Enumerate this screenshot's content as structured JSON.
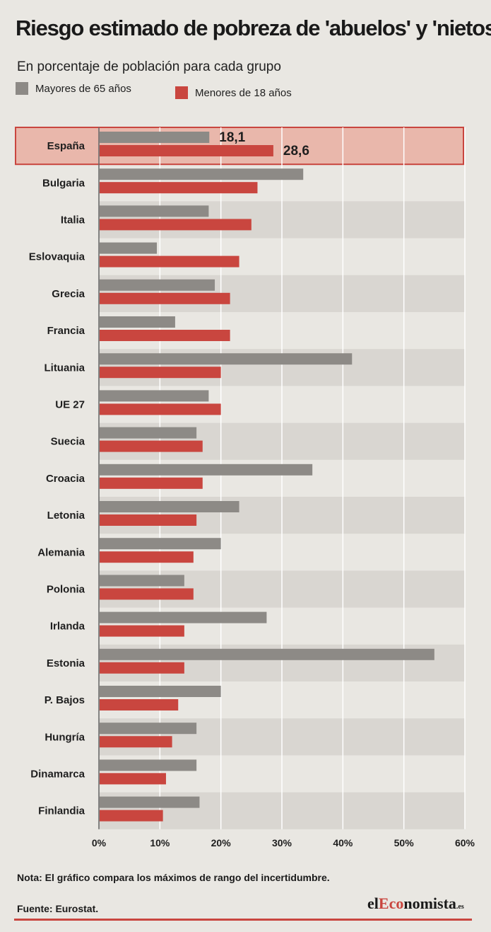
{
  "title": "Riesgo estimado de pobreza de 'abuelos' y 'nietos'",
  "subtitle": "En porcentaje de población para cada grupo",
  "legend": [
    {
      "label": "Mayores de 65 años",
      "color": "#8d8a86"
    },
    {
      "label": "Menores de 18 años",
      "color": "#c9463f"
    }
  ],
  "note": "Nota: El gráfico compara los máximos de rango del incertidumbre.",
  "source": "Fuente: Eurostat.",
  "brand": {
    "pre": "el",
    "highlight": "Eco",
    "post": "nomista",
    "suffix": ".es"
  },
  "chart_data": {
    "type": "bar",
    "orientation": "horizontal",
    "categories": [
      "España",
      "Bulgaria",
      "Italia",
      "Eslovaquia",
      "Grecia",
      "Francia",
      "Lituania",
      "UE 27",
      "Suecia",
      "Croacia",
      "Letonia",
      "Alemania",
      "Polonia",
      "Irlanda",
      "Estonia",
      "P. Bajos",
      "Hungría",
      "Dinamarca",
      "Finlandia"
    ],
    "series": [
      {
        "name": "Mayores de 65 años",
        "color": "#8d8a86",
        "values": [
          18.1,
          33.5,
          18.0,
          9.5,
          19.0,
          12.5,
          41.5,
          18.0,
          16.0,
          35.0,
          23.0,
          20.0,
          14.0,
          27.5,
          55.0,
          20.0,
          16.0,
          16.0,
          16.5
        ]
      },
      {
        "name": "Menores de 18 años",
        "color": "#c9463f",
        "values": [
          28.6,
          26.0,
          25.0,
          23.0,
          21.5,
          21.5,
          20.0,
          20.0,
          17.0,
          17.0,
          16.0,
          15.5,
          15.5,
          14.0,
          14.0,
          13.0,
          12.0,
          11.0,
          10.5
        ]
      }
    ],
    "highlight": {
      "category": "España",
      "labels": [
        "18,1",
        "28,6"
      ]
    },
    "xlim": [
      0,
      60
    ],
    "xticks": [
      0,
      10,
      20,
      30,
      40,
      50,
      60
    ],
    "xtick_labels": [
      "0%",
      "10%",
      "20%",
      "30%",
      "40%",
      "50%",
      "60%"
    ],
    "grid": true,
    "legend_position": "top-left",
    "colors": {
      "band": "#d9d6d1",
      "highlight_fill": "#e9b7ab",
      "highlight_border": "#c9463f",
      "gridline": "#ffffff"
    }
  }
}
